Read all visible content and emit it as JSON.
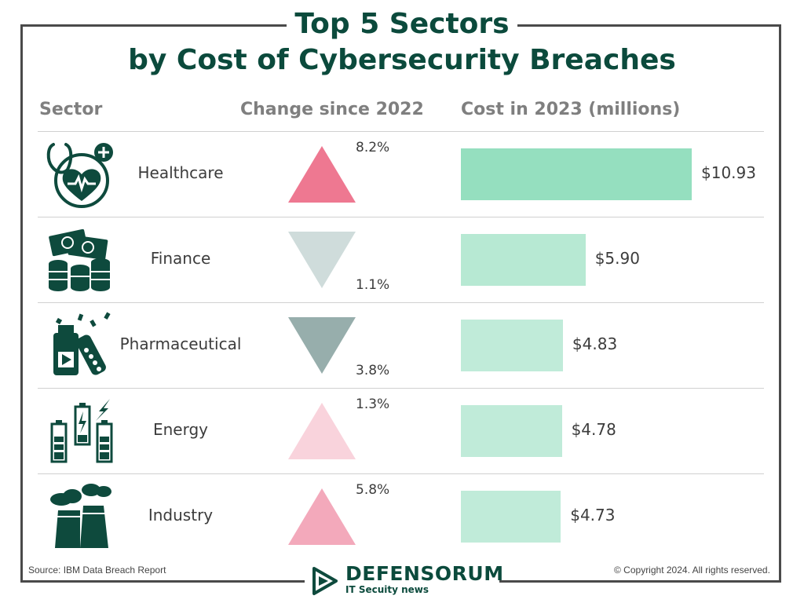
{
  "title_line1": "Top 5 Sectors",
  "title_line2": "by Cost of Cybersecurity Breaches",
  "headers": {
    "sector": "Sector",
    "change": "Change since 2022",
    "cost": "Cost in 2023 (millions)"
  },
  "chart_data": {
    "type": "table",
    "title": "Top 5 Sectors by Cost of Cybersecurity Breaches",
    "columns": [
      "Sector",
      "Change since 2022",
      "Cost in 2023 (millions)"
    ],
    "rows": [
      {
        "sector": "Healthcare",
        "icon": "heart-stethoscope-icon",
        "direction": "up",
        "change_label": "8.2%",
        "change": 8.2,
        "cost_label": "$10.93",
        "cost": 10.93,
        "arrow_color": "#ee7891",
        "bar_color": "#95dfbf"
      },
      {
        "sector": "Finance",
        "icon": "money-coins-icon",
        "direction": "down",
        "change_label": "1.1%",
        "change": -1.1,
        "cost_label": "$5.90",
        "cost": 5.9,
        "arrow_color": "#cfdcdb",
        "bar_color": "#b7e9d3"
      },
      {
        "sector": "Pharmaceutical",
        "icon": "medicine-bottle-pills-icon",
        "direction": "down",
        "change_label": "3.8%",
        "change": -3.8,
        "cost_label": "$4.83",
        "cost": 4.83,
        "arrow_color": "#97aeac",
        "bar_color": "#c0ebd9"
      },
      {
        "sector": "Energy",
        "icon": "battery-lightning-icon",
        "direction": "up",
        "change_label": "1.3%",
        "change": 1.3,
        "cost_label": "$4.78",
        "cost": 4.78,
        "arrow_color": "#f9d3dc",
        "bar_color": "#c0ebd9"
      },
      {
        "sector": "Industry",
        "icon": "factory-smoke-icon",
        "direction": "up",
        "change_label": "5.8%",
        "change": 5.8,
        "cost_label": "$4.73",
        "cost": 4.73,
        "arrow_color": "#f3a9bb",
        "bar_color": "#c0ebd9"
      }
    ]
  },
  "footer": {
    "source": "Source: IBM Data Breach Report",
    "copyright": "© Copyright 2024. All rights reserved.",
    "logo_name": "DEFENSORUM",
    "logo_tagline": "IT Secuity news"
  },
  "colors": {
    "title": "#0b4a3c",
    "header": "#7f7f7f",
    "icon": "#0e4a3d"
  }
}
